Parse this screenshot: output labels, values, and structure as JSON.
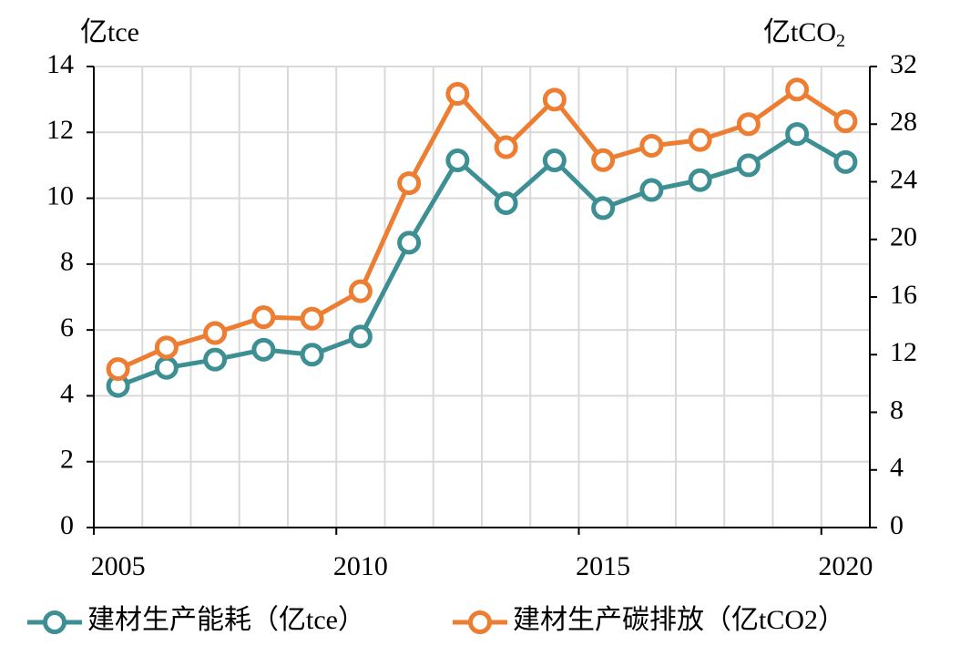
{
  "chart_data": {
    "type": "line",
    "y_label": "亿tce",
    "y2_label": {
      "text": "亿tCO",
      "subscript": "2"
    },
    "categories": [
      "2005",
      null,
      null,
      null,
      null,
      "2010",
      null,
      null,
      null,
      null,
      "2015",
      null,
      null,
      null,
      null,
      "2020"
    ],
    "series": [
      {
        "name": "建材生产能耗（亿tce）",
        "color": "#3d8f93",
        "values": [
          4.3,
          4.85,
          5.1,
          5.4,
          5.25,
          5.8,
          8.65,
          11.15,
          9.85,
          11.15,
          9.7,
          10.25,
          10.55,
          11.0,
          11.95,
          11.1
        ]
      },
      {
        "name": "建材生产碳排放（亿tCO2）",
        "color": "#ed7d31",
        "axis": "y2",
        "values": [
          11.0,
          12.5,
          13.5,
          14.6,
          14.5,
          16.4,
          23.9,
          30.1,
          26.4,
          29.7,
          25.5,
          26.5,
          26.9,
          28.0,
          30.4,
          28.2
        ]
      }
    ],
    "ylim": [
      0,
      14
    ],
    "yticks": [
      0,
      2,
      4,
      6,
      8,
      10,
      12,
      14
    ],
    "y2lim": [
      0,
      32
    ],
    "y2ticks": [
      0,
      4,
      8,
      12,
      16,
      20,
      24,
      28,
      32
    ],
    "grid": true
  }
}
